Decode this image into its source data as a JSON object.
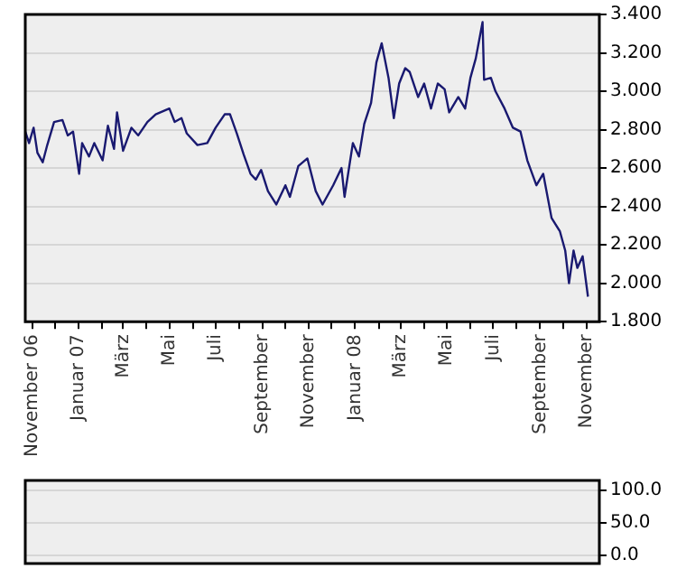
{
  "chart_data": [
    {
      "type": "line",
      "color": "#191970",
      "grid": "y",
      "legend": false,
      "marker": "none",
      "line_style": "solid",
      "x": [
        "2006-10-23",
        "2006-10-28",
        "2006-11-03",
        "2006-11-08",
        "2006-11-15",
        "2006-11-21",
        "2006-11-30",
        "2006-12-11",
        "2006-12-18",
        "2006-12-25",
        "2007-01-02",
        "2007-01-06",
        "2007-01-15",
        "2007-01-22",
        "2007-02-02",
        "2007-02-09",
        "2007-02-17",
        "2007-02-21",
        "2007-03-01",
        "2007-03-12",
        "2007-03-21",
        "2007-04-02",
        "2007-04-13",
        "2007-05-01",
        "2007-05-08",
        "2007-05-17",
        "2007-05-24",
        "2007-06-07",
        "2007-06-20",
        "2007-07-01",
        "2007-07-13",
        "2007-07-20",
        "2007-07-29",
        "2007-08-07",
        "2007-08-16",
        "2007-08-23",
        "2007-08-30",
        "2007-09-08",
        "2007-09-19",
        "2007-10-01",
        "2007-10-07",
        "2007-10-18",
        "2007-10-30",
        "2007-11-10",
        "2007-11-19",
        "2007-12-03",
        "2007-12-14",
        "2007-12-18",
        "2007-12-29",
        "2008-01-06",
        "2008-01-13",
        "2008-01-22",
        "2008-01-29",
        "2008-02-05",
        "2008-02-14",
        "2008-02-21",
        "2008-02-28",
        "2008-03-07",
        "2008-03-13",
        "2008-03-24",
        "2008-04-01",
        "2008-04-10",
        "2008-04-19",
        "2008-04-28",
        "2008-05-04",
        "2008-05-16",
        "2008-05-25",
        "2008-06-01",
        "2008-06-08",
        "2008-06-17",
        "2008-06-19",
        "2008-06-28",
        "2008-07-04",
        "2008-07-16",
        "2008-07-27",
        "2008-08-06",
        "2008-08-15",
        "2008-08-27",
        "2008-09-05",
        "2008-09-16",
        "2008-09-27",
        "2008-10-04",
        "2008-10-09",
        "2008-10-15",
        "2008-10-20",
        "2008-10-27",
        "2008-11-03"
      ],
      "values": [
        2.79,
        2.73,
        2.81,
        2.68,
        2.63,
        2.72,
        2.84,
        2.85,
        2.77,
        2.79,
        2.57,
        2.73,
        2.66,
        2.73,
        2.64,
        2.82,
        2.7,
        2.89,
        2.69,
        2.81,
        2.77,
        2.84,
        2.88,
        2.91,
        2.84,
        2.86,
        2.78,
        2.72,
        2.73,
        2.81,
        2.88,
        2.88,
        2.78,
        2.67,
        2.57,
        2.54,
        2.59,
        2.48,
        2.41,
        2.51,
        2.45,
        2.61,
        2.65,
        2.48,
        2.41,
        2.51,
        2.6,
        2.45,
        2.73,
        2.66,
        2.83,
        2.94,
        3.15,
        3.25,
        3.07,
        2.86,
        3.04,
        3.12,
        3.1,
        2.97,
        3.04,
        2.91,
        3.04,
        3.01,
        2.89,
        2.97,
        2.91,
        3.07,
        3.17,
        3.36,
        3.06,
        3.07,
        3.0,
        2.91,
        2.81,
        2.79,
        2.64,
        2.51,
        2.57,
        2.34,
        2.27,
        2.17,
        2.0,
        2.17,
        2.08,
        2.14,
        1.93
      ],
      "xlim": [
        "2006-10-23",
        "2008-11-18"
      ],
      "xticks": [
        {
          "value": "2006-11-01",
          "label": "November 06"
        },
        {
          "value": "2006-12-01",
          "label": null
        },
        {
          "value": "2007-01-01",
          "label": "Januar 07"
        },
        {
          "value": "2007-02-01",
          "label": null
        },
        {
          "value": "2007-03-01",
          "label": "März"
        },
        {
          "value": "2007-04-01",
          "label": null
        },
        {
          "value": "2007-05-01",
          "label": "Mai"
        },
        {
          "value": "2007-06-01",
          "label": null
        },
        {
          "value": "2007-07-01",
          "label": "Juli"
        },
        {
          "value": "2007-08-01",
          "label": null
        },
        {
          "value": "2007-09-01",
          "label": "September"
        },
        {
          "value": "2007-10-01",
          "label": null
        },
        {
          "value": "2007-11-01",
          "label": "November"
        },
        {
          "value": "2007-12-01",
          "label": null
        },
        {
          "value": "2008-01-01",
          "label": "Januar 08"
        },
        {
          "value": "2008-02-01",
          "label": null
        },
        {
          "value": "2008-03-01",
          "label": "März"
        },
        {
          "value": "2008-04-01",
          "label": null
        },
        {
          "value": "2008-05-01",
          "label": "Mai"
        },
        {
          "value": "2008-06-01",
          "label": null
        },
        {
          "value": "2008-07-01",
          "label": "Juli"
        },
        {
          "value": "2008-08-01",
          "label": null
        },
        {
          "value": "2008-09-01",
          "label": "September"
        },
        {
          "value": "2008-10-01",
          "label": null
        },
        {
          "value": "2008-11-01",
          "label": "November"
        }
      ],
      "ylim": [
        1.8,
        3.4
      ],
      "yticks": [
        {
          "value": 1.8,
          "label": "1.800"
        },
        {
          "value": 2.0,
          "label": "2.000"
        },
        {
          "value": 2.2,
          "label": "2.200"
        },
        {
          "value": 2.4,
          "label": "2.400"
        },
        {
          "value": 2.6,
          "label": "2.600"
        },
        {
          "value": 2.8,
          "label": "2.800"
        },
        {
          "value": 3.0,
          "label": "3.000"
        },
        {
          "value": 3.2,
          "label": "3.200"
        },
        {
          "value": 3.4,
          "label": "3.400"
        }
      ]
    },
    {
      "type": "line",
      "grid": "y",
      "legend": false,
      "tick_labels": "y",
      "xlim": [
        "2006-10-23",
        "2008-11-18"
      ],
      "ylim": [
        -12,
        115
      ],
      "yticks": [
        {
          "value": 0,
          "label": "0.0"
        },
        {
          "value": 50,
          "label": "50.0"
        },
        {
          "value": 100,
          "label": "100.0"
        }
      ]
    }
  ]
}
